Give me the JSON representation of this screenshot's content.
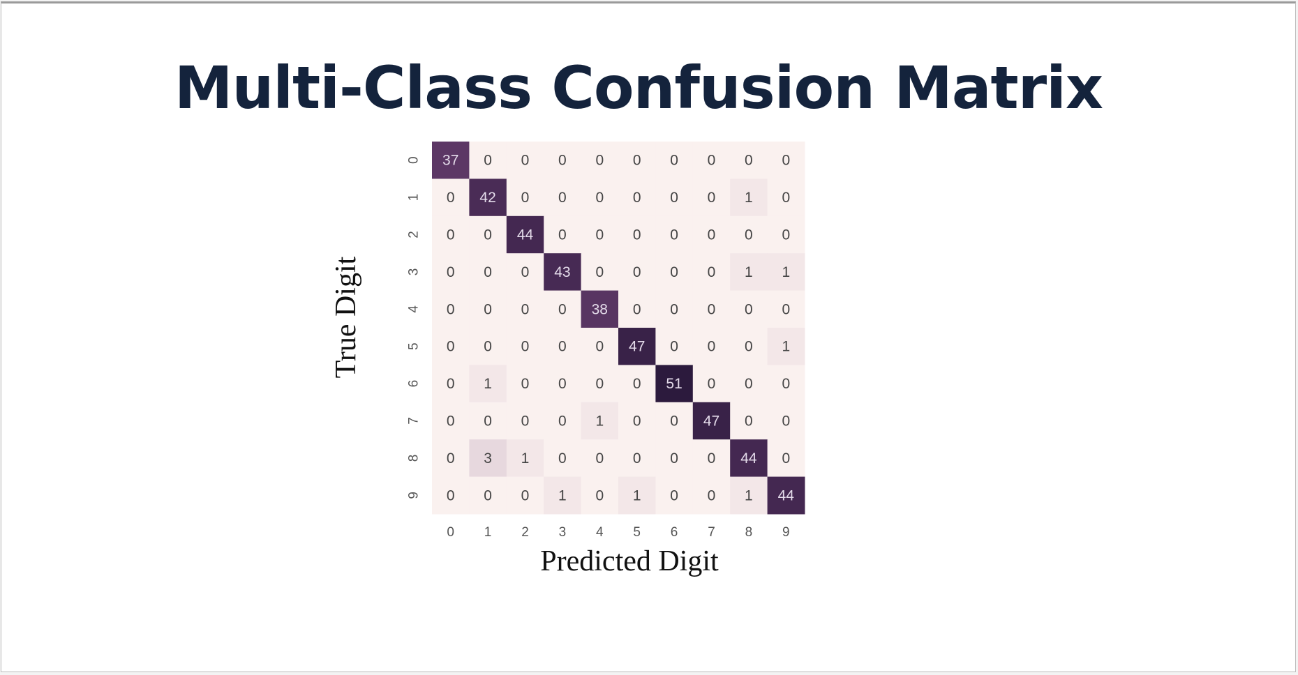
{
  "slide": {
    "title": "Multi-Class Confusion Matrix"
  },
  "chart_data": {
    "type": "heatmap",
    "title": "",
    "xlabel": "Predicted Digit",
    "ylabel": "True Digit",
    "x_categories": [
      "0",
      "1",
      "2",
      "3",
      "4",
      "5",
      "6",
      "7",
      "8",
      "9"
    ],
    "y_categories": [
      "0",
      "1",
      "2",
      "3",
      "4",
      "5",
      "6",
      "7",
      "8",
      "9"
    ],
    "values": [
      [
        37,
        0,
        0,
        0,
        0,
        0,
        0,
        0,
        0,
        0
      ],
      [
        0,
        42,
        0,
        0,
        0,
        0,
        0,
        0,
        1,
        0
      ],
      [
        0,
        0,
        44,
        0,
        0,
        0,
        0,
        0,
        0,
        0
      ],
      [
        0,
        0,
        0,
        43,
        0,
        0,
        0,
        0,
        1,
        1
      ],
      [
        0,
        0,
        0,
        0,
        38,
        0,
        0,
        0,
        0,
        0
      ],
      [
        0,
        0,
        0,
        0,
        0,
        47,
        0,
        0,
        0,
        1
      ],
      [
        0,
        1,
        0,
        0,
        0,
        0,
        51,
        0,
        0,
        0
      ],
      [
        0,
        0,
        0,
        0,
        1,
        0,
        0,
        47,
        0,
        0
      ],
      [
        0,
        3,
        1,
        0,
        0,
        0,
        0,
        0,
        44,
        0
      ],
      [
        0,
        0,
        0,
        1,
        0,
        1,
        0,
        0,
        1,
        44
      ]
    ],
    "colormap": [
      "#faf1ef",
      "#2c1a3d"
    ],
    "grid": false,
    "legend": "none"
  }
}
